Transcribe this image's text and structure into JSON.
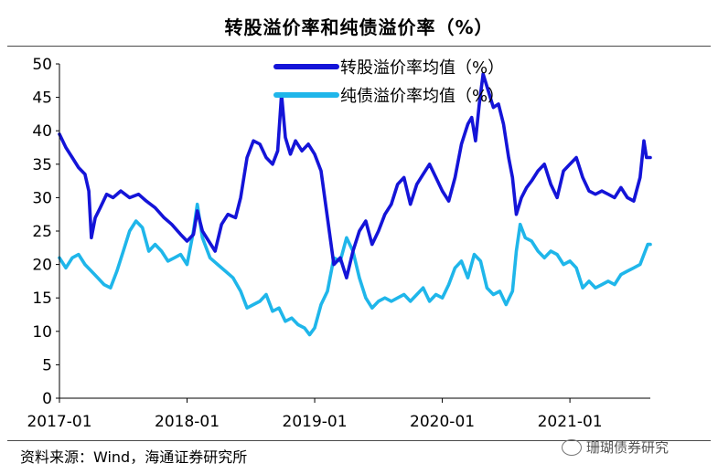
{
  "title": "转股溢价率和纯债溢价率（%）",
  "source": "资料来源：Wind，海通证券研究所",
  "watermark": "珊瑚债券研究",
  "chart_data": {
    "type": "line",
    "x_start": "2017-01",
    "x_end": "2021-08",
    "xlim": [
      2017.0,
      2021.63
    ],
    "ylim": [
      0,
      50
    ],
    "yticks": [
      "0",
      "5",
      "10",
      "15",
      "20",
      "25",
      "30",
      "35",
      "40",
      "45",
      "50"
    ],
    "ytick_values": [
      0,
      5,
      10,
      15,
      20,
      25,
      30,
      35,
      40,
      45,
      50
    ],
    "xticks": [
      "2017-01",
      "2018-01",
      "2019-01",
      "2020-01",
      "2021-01"
    ],
    "xtick_values": [
      2017.0,
      2018.0,
      2019.0,
      2020.0,
      2021.0
    ],
    "legend_position": "top-center",
    "series": [
      {
        "name": "转股溢价率均值（%）",
        "color": "#1414d8",
        "points": [
          [
            2017.0,
            39.5
          ],
          [
            2017.05,
            37.5
          ],
          [
            2017.1,
            36.0
          ],
          [
            2017.15,
            34.5
          ],
          [
            2017.2,
            33.5
          ],
          [
            2017.23,
            31.0
          ],
          [
            2017.25,
            24.0
          ],
          [
            2017.28,
            27.0
          ],
          [
            2017.32,
            28.5
          ],
          [
            2017.37,
            30.5
          ],
          [
            2017.42,
            30.0
          ],
          [
            2017.48,
            31.0
          ],
          [
            2017.55,
            30.0
          ],
          [
            2017.62,
            30.5
          ],
          [
            2017.68,
            29.5
          ],
          [
            2017.75,
            28.5
          ],
          [
            2017.82,
            27.0
          ],
          [
            2017.88,
            26.0
          ],
          [
            2017.95,
            24.5
          ],
          [
            2018.0,
            23.5
          ],
          [
            2018.05,
            24.5
          ],
          [
            2018.08,
            28.0
          ],
          [
            2018.12,
            25.0
          ],
          [
            2018.17,
            23.5
          ],
          [
            2018.22,
            22.0
          ],
          [
            2018.27,
            26.0
          ],
          [
            2018.32,
            27.5
          ],
          [
            2018.38,
            27.0
          ],
          [
            2018.42,
            30.0
          ],
          [
            2018.47,
            36.0
          ],
          [
            2018.52,
            38.5
          ],
          [
            2018.57,
            38.0
          ],
          [
            2018.62,
            36.0
          ],
          [
            2018.67,
            35.0
          ],
          [
            2018.71,
            37.0
          ],
          [
            2018.74,
            45.5
          ],
          [
            2018.77,
            39.0
          ],
          [
            2018.81,
            36.5
          ],
          [
            2018.85,
            38.5
          ],
          [
            2018.9,
            37.0
          ],
          [
            2018.95,
            38.0
          ],
          [
            2019.0,
            36.5
          ],
          [
            2019.05,
            34.0
          ],
          [
            2019.1,
            27.0
          ],
          [
            2019.15,
            20.0
          ],
          [
            2019.2,
            21.0
          ],
          [
            2019.25,
            18.0
          ],
          [
            2019.3,
            22.0
          ],
          [
            2019.35,
            25.0
          ],
          [
            2019.4,
            26.5
          ],
          [
            2019.45,
            23.0
          ],
          [
            2019.5,
            25.0
          ],
          [
            2019.55,
            27.5
          ],
          [
            2019.6,
            29.0
          ],
          [
            2019.65,
            32.0
          ],
          [
            2019.7,
            33.0
          ],
          [
            2019.75,
            29.0
          ],
          [
            2019.8,
            32.0
          ],
          [
            2019.85,
            33.5
          ],
          [
            2019.9,
            35.0
          ],
          [
            2019.95,
            33.0
          ],
          [
            2020.0,
            31.0
          ],
          [
            2020.05,
            29.5
          ],
          [
            2020.1,
            33.0
          ],
          [
            2020.15,
            38.0
          ],
          [
            2020.2,
            41.0
          ],
          [
            2020.23,
            42.0
          ],
          [
            2020.26,
            38.5
          ],
          [
            2020.29,
            44.0
          ],
          [
            2020.32,
            48.5
          ],
          [
            2020.36,
            46.0
          ],
          [
            2020.4,
            43.5
          ],
          [
            2020.44,
            44.0
          ],
          [
            2020.48,
            41.0
          ],
          [
            2020.52,
            36.0
          ],
          [
            2020.55,
            33.0
          ],
          [
            2020.58,
            27.5
          ],
          [
            2020.62,
            30.0
          ],
          [
            2020.66,
            31.5
          ],
          [
            2020.7,
            32.5
          ],
          [
            2020.75,
            34.0
          ],
          [
            2020.8,
            35.0
          ],
          [
            2020.85,
            32.0
          ],
          [
            2020.9,
            30.0
          ],
          [
            2020.95,
            34.0
          ],
          [
            2021.0,
            35.0
          ],
          [
            2021.05,
            36.0
          ],
          [
            2021.1,
            33.0
          ],
          [
            2021.15,
            31.0
          ],
          [
            2021.2,
            30.5
          ],
          [
            2021.25,
            31.0
          ],
          [
            2021.3,
            30.5
          ],
          [
            2021.35,
            30.0
          ],
          [
            2021.4,
            31.5
          ],
          [
            2021.45,
            30.0
          ],
          [
            2021.5,
            29.5
          ],
          [
            2021.55,
            33.0
          ],
          [
            2021.58,
            38.5
          ],
          [
            2021.6,
            36.0
          ],
          [
            2021.63,
            36.0
          ]
        ]
      },
      {
        "name": "纯债溢价率均值（%）",
        "color": "#1fb6ea",
        "points": [
          [
            2017.0,
            21.0
          ],
          [
            2017.05,
            19.5
          ],
          [
            2017.1,
            21.0
          ],
          [
            2017.15,
            21.5
          ],
          [
            2017.2,
            20.0
          ],
          [
            2017.25,
            19.0
          ],
          [
            2017.3,
            18.0
          ],
          [
            2017.35,
            17.0
          ],
          [
            2017.4,
            16.5
          ],
          [
            2017.45,
            19.0
          ],
          [
            2017.5,
            22.0
          ],
          [
            2017.55,
            25.0
          ],
          [
            2017.6,
            26.5
          ],
          [
            2017.65,
            25.5
          ],
          [
            2017.7,
            22.0
          ],
          [
            2017.75,
            23.0
          ],
          [
            2017.8,
            22.0
          ],
          [
            2017.85,
            20.5
          ],
          [
            2017.9,
            21.0
          ],
          [
            2017.95,
            21.5
          ],
          [
            2018.0,
            20.0
          ],
          [
            2018.05,
            25.0
          ],
          [
            2018.08,
            29.0
          ],
          [
            2018.12,
            24.0
          ],
          [
            2018.18,
            21.0
          ],
          [
            2018.24,
            20.0
          ],
          [
            2018.3,
            19.0
          ],
          [
            2018.36,
            18.0
          ],
          [
            2018.42,
            16.0
          ],
          [
            2018.47,
            13.5
          ],
          [
            2018.52,
            14.0
          ],
          [
            2018.57,
            14.5
          ],
          [
            2018.62,
            15.5
          ],
          [
            2018.67,
            13.0
          ],
          [
            2018.72,
            13.5
          ],
          [
            2018.77,
            11.5
          ],
          [
            2018.82,
            12.0
          ],
          [
            2018.87,
            11.0
          ],
          [
            2018.92,
            10.5
          ],
          [
            2018.96,
            9.5
          ],
          [
            2019.0,
            10.5
          ],
          [
            2019.05,
            14.0
          ],
          [
            2019.1,
            16.0
          ],
          [
            2019.15,
            21.0
          ],
          [
            2019.2,
            20.5
          ],
          [
            2019.25,
            24.0
          ],
          [
            2019.3,
            22.0
          ],
          [
            2019.35,
            18.0
          ],
          [
            2019.4,
            15.0
          ],
          [
            2019.45,
            13.5
          ],
          [
            2019.5,
            14.5
          ],
          [
            2019.55,
            15.0
          ],
          [
            2019.6,
            14.5
          ],
          [
            2019.65,
            15.0
          ],
          [
            2019.7,
            15.5
          ],
          [
            2019.75,
            14.5
          ],
          [
            2019.8,
            15.5
          ],
          [
            2019.85,
            16.5
          ],
          [
            2019.9,
            14.5
          ],
          [
            2019.95,
            15.5
          ],
          [
            2020.0,
            15.0
          ],
          [
            2020.05,
            17.0
          ],
          [
            2020.1,
            19.5
          ],
          [
            2020.15,
            20.5
          ],
          [
            2020.2,
            18.0
          ],
          [
            2020.25,
            21.5
          ],
          [
            2020.3,
            20.5
          ],
          [
            2020.35,
            16.5
          ],
          [
            2020.4,
            15.5
          ],
          [
            2020.45,
            16.0
          ],
          [
            2020.5,
            14.0
          ],
          [
            2020.55,
            16.0
          ],
          [
            2020.58,
            22.0
          ],
          [
            2020.61,
            26.0
          ],
          [
            2020.65,
            24.0
          ],
          [
            2020.7,
            23.5
          ],
          [
            2020.75,
            22.0
          ],
          [
            2020.8,
            21.0
          ],
          [
            2020.85,
            22.0
          ],
          [
            2020.9,
            21.5
          ],
          [
            2020.95,
            20.0
          ],
          [
            2021.0,
            20.5
          ],
          [
            2021.05,
            19.5
          ],
          [
            2021.1,
            16.5
          ],
          [
            2021.15,
            17.5
          ],
          [
            2021.2,
            16.5
          ],
          [
            2021.25,
            17.0
          ],
          [
            2021.3,
            17.5
          ],
          [
            2021.35,
            17.0
          ],
          [
            2021.4,
            18.5
          ],
          [
            2021.45,
            19.0
          ],
          [
            2021.5,
            19.5
          ],
          [
            2021.55,
            20.0
          ],
          [
            2021.58,
            21.5
          ],
          [
            2021.61,
            23.0
          ],
          [
            2021.63,
            23.0
          ]
        ]
      }
    ]
  }
}
